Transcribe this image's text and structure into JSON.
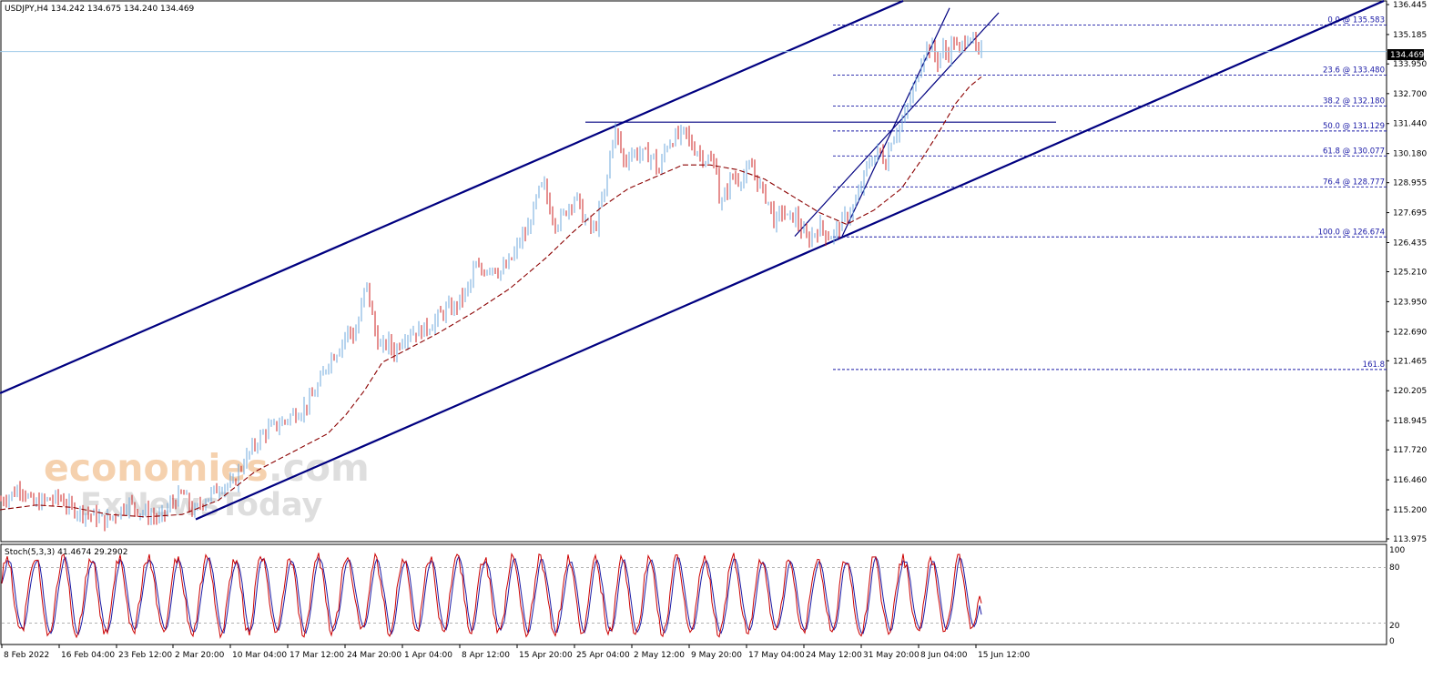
{
  "header": {
    "symbol_info": "USDJPY,H4  134.242 134.675 134.240 134.469",
    "current_price": "134.469"
  },
  "stoch_panel": {
    "label": "Stoch(5,3,3) 41.4674 29.2902",
    "levels": [
      "100",
      "80",
      "20",
      "0"
    ]
  },
  "watermark": {
    "line1_a": "economies",
    "line1_b": ".com",
    "line2": "FxNewsToday"
  },
  "colors": {
    "up_candle": "#6fa8dc",
    "down_candle": "#cc2222",
    "trendline": "#000080",
    "moving_average": "#8b0000",
    "fib_line": "#1a1aa6",
    "stoch_main": "#cc0000",
    "stoch_signal": "#1a1aa6",
    "watermark_orange": "#f4c9a0",
    "watermark_gray": "#d9d9d9"
  },
  "chart_data": [
    {
      "type": "candlestick",
      "instrument": "USDJPY",
      "timeframe": "H4",
      "ohlc_last": {
        "open": 134.242,
        "high": 134.675,
        "low": 134.24,
        "close": 134.469
      },
      "y_ticks": [
        "136.445",
        "135.185",
        "133.950",
        "132.700",
        "131.440",
        "130.180",
        "128.955",
        "127.695",
        "126.435",
        "125.210",
        "123.950",
        "122.690",
        "121.465",
        "120.205",
        "118.945",
        "117.720",
        "116.460",
        "115.200",
        "113.975"
      ],
      "ylim": [
        113.975,
        136.445
      ],
      "x_ticks": [
        "8 Feb 2022",
        "16 Feb 04:00",
        "23 Feb 12:00",
        "2 Mar 20:00",
        "10 Mar 04:00",
        "17 Mar 12:00",
        "24 Mar 20:00",
        "1 Apr 04:00",
        "8 Apr 12:00",
        "15 Apr 20:00",
        "25 Apr 04:00",
        "2 May 12:00",
        "9 May 20:00",
        "17 May 04:00",
        "24 May 12:00",
        "31 May 20:00",
        "8 Jun 04:00",
        "15 Jun 12:00"
      ],
      "close_path": [
        [
          0,
          115.6
        ],
        [
          14,
          115.9
        ],
        [
          22,
          116.2
        ],
        [
          35,
          115.4
        ],
        [
          50,
          115.6
        ],
        [
          65,
          115.7
        ],
        [
          75,
          115.3
        ],
        [
          90,
          115.1
        ],
        [
          105,
          114.9
        ],
        [
          115,
          114.7
        ],
        [
          128,
          115.1
        ],
        [
          140,
          115.5
        ],
        [
          150,
          115.2
        ],
        [
          162,
          115.0
        ],
        [
          175,
          114.8
        ],
        [
          188,
          115.5
        ],
        [
          200,
          115.9
        ],
        [
          212,
          115.0
        ],
        [
          220,
          115.5
        ],
        [
          232,
          115.9
        ],
        [
          245,
          116.3
        ],
        [
          255,
          116.2
        ],
        [
          262,
          116.9
        ],
        [
          270,
          117.4
        ],
        [
          280,
          118.0
        ],
        [
          290,
          118.5
        ],
        [
          300,
          118.7
        ],
        [
          310,
          118.9
        ],
        [
          320,
          119.2
        ],
        [
          330,
          119.4
        ],
        [
          340,
          119.8
        ],
        [
          350,
          120.5
        ],
        [
          360,
          121.5
        ],
        [
          368,
          121.8
        ],
        [
          375,
          122.3
        ],
        [
          382,
          122.8
        ],
        [
          388,
          122.4
        ],
        [
          395,
          123.5
        ],
        [
          401,
          124.8
        ],
        [
          405,
          124.0
        ],
        [
          410,
          122.8
        ],
        [
          418,
          121.9
        ],
        [
          425,
          122.3
        ],
        [
          432,
          121.8
        ],
        [
          440,
          122.4
        ],
        [
          450,
          122.7
        ],
        [
          460,
          122.7
        ],
        [
          470,
          122.9
        ],
        [
          478,
          123.2
        ],
        [
          488,
          123.6
        ],
        [
          498,
          123.7
        ],
        [
          508,
          124.2
        ],
        [
          515,
          124.6
        ],
        [
          520,
          125.4
        ],
        [
          528,
          125.2
        ],
        [
          538,
          125.5
        ],
        [
          548,
          125.2
        ],
        [
          555,
          125.4
        ],
        [
          562,
          125.8
        ],
        [
          570,
          126.5
        ],
        [
          578,
          126.9
        ],
        [
          585,
          127.8
        ],
        [
          590,
          128.5
        ],
        [
          596,
          128.9
        ],
        [
          602,
          128.0
        ],
        [
          610,
          127.2
        ],
        [
          618,
          127.6
        ],
        [
          625,
          128.1
        ],
        [
          632,
          128.4
        ],
        [
          638,
          127.6
        ],
        [
          645,
          127.2
        ],
        [
          652,
          126.9
        ],
        [
          658,
          127.9
        ],
        [
          665,
          128.8
        ],
        [
          670,
          130.5
        ],
        [
          674,
          131.2
        ],
        [
          680,
          130.5
        ],
        [
          685,
          129.7
        ],
        [
          690,
          130.2
        ],
        [
          700,
          130.2
        ],
        [
          710,
          130.1
        ],
        [
          718,
          130.0
        ],
        [
          722,
          129.2
        ],
        [
          730,
          130.5
        ],
        [
          738,
          130.8
        ],
        [
          745,
          130.9
        ],
        [
          752,
          131.1
        ],
        [
          758,
          130.5
        ],
        [
          765,
          130.3
        ],
        [
          772,
          130.0
        ],
        [
          780,
          129.8
        ],
        [
          786,
          129.6
        ],
        [
          790,
          127.8
        ],
        [
          795,
          128.4
        ],
        [
          802,
          129.2
        ],
        [
          810,
          129.1
        ],
        [
          818,
          129.3
        ],
        [
          825,
          129.6
        ],
        [
          832,
          128.9
        ],
        [
          838,
          128.5
        ],
        [
          845,
          128.0
        ],
        [
          850,
          127.2
        ],
        [
          858,
          127.8
        ],
        [
          865,
          127.4
        ],
        [
          872,
          127.6
        ],
        [
          880,
          126.9
        ],
        [
          886,
          126.5
        ],
        [
          892,
          126.8
        ],
        [
          900,
          127.1
        ],
        [
          908,
          126.7
        ],
        [
          915,
          126.8
        ],
        [
          922,
          127.2
        ],
        [
          930,
          127.6
        ],
        [
          938,
          128.0
        ],
        [
          945,
          128.8
        ],
        [
          952,
          129.7
        ],
        [
          958,
          130.0
        ],
        [
          965,
          130.3
        ],
        [
          972,
          129.8
        ],
        [
          978,
          130.8
        ],
        [
          985,
          131.2
        ],
        [
          990,
          131.5
        ],
        [
          995,
          132.0
        ],
        [
          1000,
          132.7
        ],
        [
          1005,
          133.1
        ],
        [
          1010,
          134.0
        ],
        [
          1015,
          134.6
        ],
        [
          1022,
          134.7
        ],
        [
          1028,
          134.0
        ],
        [
          1034,
          134.6
        ],
        [
          1040,
          134.3
        ],
        [
          1046,
          135.0
        ],
        [
          1052,
          134.4
        ],
        [
          1058,
          134.9
        ],
        [
          1064,
          135.3
        ],
        [
          1068,
          134.8
        ],
        [
          1074,
          134.3
        ],
        [
          1078,
          134.5
        ]
      ],
      "ma_path": [
        [
          0,
          115.2
        ],
        [
          40,
          115.4
        ],
        [
          80,
          115.3
        ],
        [
          120,
          115.0
        ],
        [
          160,
          114.9
        ],
        [
          200,
          115.0
        ],
        [
          240,
          115.6
        ],
        [
          280,
          116.8
        ],
        [
          320,
          117.6
        ],
        [
          360,
          118.4
        ],
        [
          380,
          119.2
        ],
        [
          400,
          120.2
        ],
        [
          420,
          121.4
        ],
        [
          440,
          121.8
        ],
        [
          480,
          122.6
        ],
        [
          520,
          123.5
        ],
        [
          560,
          124.5
        ],
        [
          600,
          125.8
        ],
        [
          630,
          126.9
        ],
        [
          660,
          127.9
        ],
        [
          690,
          128.7
        ],
        [
          720,
          129.2
        ],
        [
          750,
          129.7
        ],
        [
          780,
          129.7
        ],
        [
          810,
          129.5
        ],
        [
          840,
          129.1
        ],
        [
          870,
          128.4
        ],
        [
          900,
          127.7
        ],
        [
          930,
          127.2
        ],
        [
          960,
          127.8
        ],
        [
          990,
          128.7
        ],
        [
          1010,
          129.8
        ],
        [
          1030,
          131.0
        ],
        [
          1050,
          132.3
        ],
        [
          1065,
          133.0
        ],
        [
          1078,
          133.4
        ]
      ],
      "trendlines": [
        {
          "name": "upper-channel",
          "from": [
            0,
            120.1
          ],
          "to": [
            992,
            136.6
          ]
        },
        {
          "name": "lower-channel",
          "from": [
            215,
            114.8
          ],
          "to": [
            1520,
            136.6
          ]
        },
        {
          "name": "horizontal-resistance",
          "from": [
            643,
            131.5
          ],
          "to": [
            1160,
            131.5
          ]
        },
        {
          "name": "minor-channel-upper",
          "from": [
            873,
            126.7
          ],
          "to": [
            1097,
            136.1
          ]
        },
        {
          "name": "minor-channel-lower",
          "from": [
            925,
            126.7
          ],
          "to": [
            1043,
            136.3
          ]
        }
      ],
      "fibonacci": {
        "start_x": 915,
        "levels": [
          {
            "label": "0.0 @ 135.583",
            "price": 135.583
          },
          {
            "label": "23.6 @ 133.480",
            "price": 133.48
          },
          {
            "label": "38.2 @ 132.180",
            "price": 132.18
          },
          {
            "label": "50.0 @ 131.129",
            "price": 131.129
          },
          {
            "label": "61.8 @ 130.077",
            "price": 130.077
          },
          {
            "label": "76.4 @ 128.777",
            "price": 128.777
          },
          {
            "label": "100.0 @ 126.674",
            "price": 126.674
          },
          {
            "label": "161.8",
            "price": 121.1
          }
        ]
      }
    },
    {
      "type": "line",
      "indicator": "Stochastic",
      "params": "5,3,3",
      "values_last": {
        "main": 41.4674,
        "signal": 29.2902
      },
      "ylim": [
        0,
        100
      ],
      "levels": [
        80,
        20
      ]
    }
  ]
}
